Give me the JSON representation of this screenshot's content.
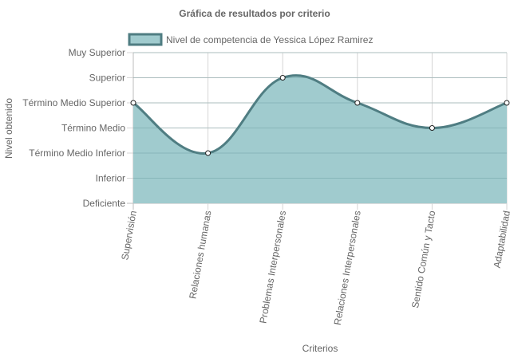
{
  "chart_data": {
    "type": "area",
    "title": "Gráfica de resultados por criterio",
    "xlabel": "Criterios",
    "ylabel": "Nivel obtenido",
    "y_levels": [
      "Deficiente",
      "Inferior",
      "Término Medio Inferior",
      "Término Medio",
      "Término Medio Superior",
      "Superior",
      "Muy Superior"
    ],
    "categories": [
      "Supervisión",
      "Relaciones humanas",
      "Problemas Interpersonales",
      "Relaciones Interpersonales",
      "Sentido Común y Tacto",
      "Adaptabilidad"
    ],
    "series": [
      {
        "name": "Nivel de competencia de Yessica López Ramirez",
        "values": [
          4,
          2,
          5,
          4,
          3,
          4
        ],
        "value_labels": [
          "Término Medio Superior",
          "Término Medio Inferior",
          "Superior",
          "Término Medio Superior",
          "Término Medio",
          "Término Medio Superior"
        ],
        "fill_color": "#a0cbce",
        "line_color": "#4f7d82"
      }
    ],
    "ylim": [
      0,
      6
    ],
    "grid": true,
    "legend_position": "top"
  }
}
